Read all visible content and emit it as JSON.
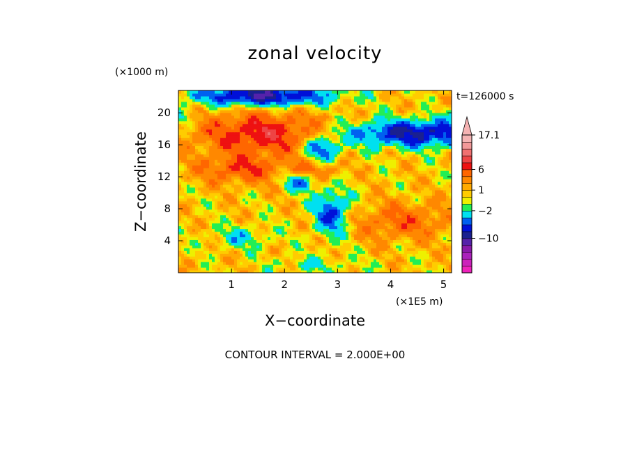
{
  "chart_data": {
    "type": "heatmap",
    "title": "zonal velocity",
    "xlabel": "X−coordinate",
    "ylabel": "Z−coordinate",
    "x_unit": "(×1E5 m)",
    "y_unit": "(×1000 m)",
    "time_label": "t=126000 s",
    "contour_note": "CONTOUR INTERVAL = 2.000E+00",
    "xlim": [
      0,
      5.15
    ],
    "ylim": [
      0,
      22.8
    ],
    "x_ticks": [
      {
        "value": 1,
        "label": "1"
      },
      {
        "value": 2,
        "label": "2"
      },
      {
        "value": 3,
        "label": "3"
      },
      {
        "value": 4,
        "label": "4"
      },
      {
        "value": 5,
        "label": "5"
      }
    ],
    "y_ticks": [
      {
        "value": 4,
        "label": "4"
      },
      {
        "value": 8,
        "label": "8"
      },
      {
        "value": 12,
        "label": "12"
      },
      {
        "value": 16,
        "label": "16"
      },
      {
        "value": 20,
        "label": "20"
      }
    ],
    "colorbar": {
      "levels": [
        -20,
        -18,
        -16,
        -14,
        -12,
        -10,
        -8,
        -6,
        -4,
        -2,
        -1,
        0,
        1,
        2,
        4,
        6,
        8,
        10,
        12,
        14,
        17.1
      ],
      "colors": [
        "#ee22bb",
        "#cc22bb",
        "#aa22bb",
        "#8a1aaa",
        "#5522aa",
        "#1a2090",
        "#0010d8",
        "#0060f0",
        "#00e0f0",
        "#22ee55",
        "#eef000",
        "#ffcc00",
        "#ffaa00",
        "#ff8800",
        "#ff6600",
        "#ee1111",
        "#ee4444",
        "#f07070",
        "#f29999",
        "#f5b3b3"
      ],
      "labels": [
        {
          "value": 17.1,
          "label": "17.1"
        },
        {
          "value": 6,
          "label": "6"
        },
        {
          "value": 1,
          "label": "1"
        },
        {
          "value": -2,
          "label": "−2"
        },
        {
          "value": -10,
          "label": "−10"
        }
      ]
    }
  }
}
